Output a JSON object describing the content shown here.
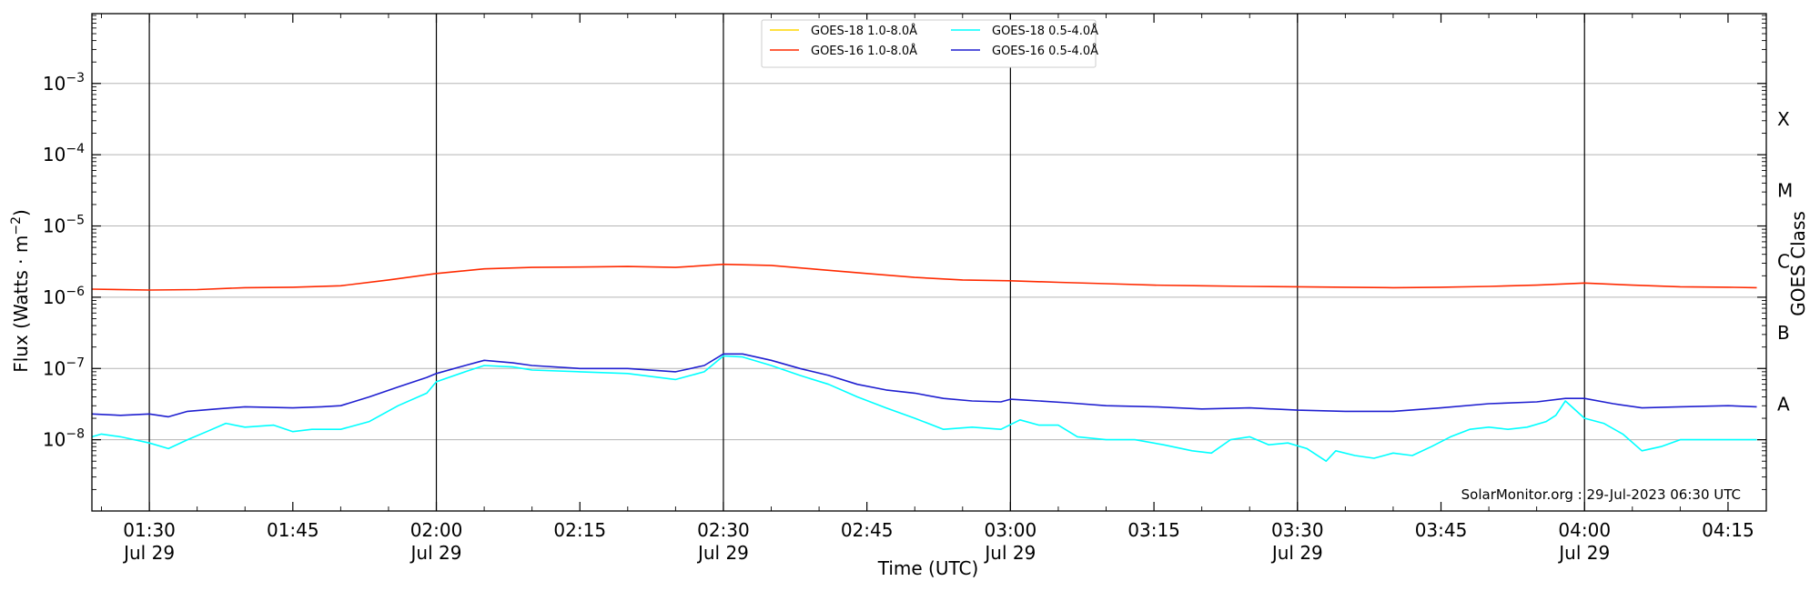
{
  "chart_data": {
    "type": "line",
    "yscale": "log",
    "ylabel_base": "Flux (Watts · m",
    "ylabel_sup": "−2",
    "ylabel_end": ")",
    "xlabel": "Time (UTC)",
    "right_label": "GOES Class",
    "credit": "SolarMonitor.org : 29-Jul-2023 06:30 UTC",
    "legend_position": "top-center",
    "grid": "horizontal at decades",
    "xlim": [
      "01:24",
      "04:19"
    ],
    "ylim_exponent": [
      -9,
      -2.02
    ],
    "x_ticks": [
      {
        "t": "01:30",
        "label": "01:30",
        "sub": "Jul 29",
        "major": true
      },
      {
        "t": "01:45",
        "label": "01:45",
        "sub": "",
        "major": false
      },
      {
        "t": "02:00",
        "label": "02:00",
        "sub": "Jul 29",
        "major": true
      },
      {
        "t": "02:15",
        "label": "02:15",
        "sub": "",
        "major": false
      },
      {
        "t": "02:30",
        "label": "02:30",
        "sub": "Jul 29",
        "major": true
      },
      {
        "t": "02:45",
        "label": "02:45",
        "sub": "",
        "major": false
      },
      {
        "t": "03:00",
        "label": "03:00",
        "sub": "Jul 29",
        "major": true
      },
      {
        "t": "03:15",
        "label": "03:15",
        "sub": "",
        "major": false
      },
      {
        "t": "03:30",
        "label": "03:30",
        "sub": "Jul 29",
        "major": true
      },
      {
        "t": "03:45",
        "label": "03:45",
        "sub": "",
        "major": false
      },
      {
        "t": "04:00",
        "label": "04:00",
        "sub": "Jul 29",
        "major": true
      },
      {
        "t": "04:15",
        "label": "04:15",
        "sub": "",
        "major": false
      }
    ],
    "y_ticks": [
      {
        "exp": -3,
        "label": "10",
        "sup": "−3"
      },
      {
        "exp": -4,
        "label": "10",
        "sup": "−4"
      },
      {
        "exp": -5,
        "label": "10",
        "sup": "−5"
      },
      {
        "exp": -6,
        "label": "10",
        "sup": "−6"
      },
      {
        "exp": -7,
        "label": "10",
        "sup": "−7"
      },
      {
        "exp": -8,
        "label": "10",
        "sup": "−8"
      }
    ],
    "goes_classes": [
      {
        "label": "X",
        "exp": -3.5
      },
      {
        "label": "M",
        "exp": -4.5
      },
      {
        "label": "C",
        "exp": -5.5
      },
      {
        "label": "B",
        "exp": -6.5
      },
      {
        "label": "A",
        "exp": -7.5
      }
    ],
    "series": [
      {
        "name": "GOES-18 1.0-8.0Å",
        "color": "#ffd700",
        "points": []
      },
      {
        "name": "GOES-16 1.0-8.0Å",
        "color": "#ff2a00",
        "points": [
          [
            "01:24",
            1.3e-06
          ],
          [
            "01:30",
            1.26e-06
          ],
          [
            "01:35",
            1.28e-06
          ],
          [
            "01:40",
            1.36e-06
          ],
          [
            "01:45",
            1.38e-06
          ],
          [
            "01:50",
            1.45e-06
          ],
          [
            "01:55",
            1.75e-06
          ],
          [
            "02:00",
            2.15e-06
          ],
          [
            "02:05",
            2.5e-06
          ],
          [
            "02:10",
            2.62e-06
          ],
          [
            "02:15",
            2.65e-06
          ],
          [
            "02:20",
            2.7e-06
          ],
          [
            "02:25",
            2.62e-06
          ],
          [
            "02:30",
            2.9e-06
          ],
          [
            "02:35",
            2.8e-06
          ],
          [
            "02:40",
            2.45e-06
          ],
          [
            "02:45",
            2.15e-06
          ],
          [
            "02:50",
            1.9e-06
          ],
          [
            "02:55",
            1.75e-06
          ],
          [
            "03:00",
            1.7e-06
          ],
          [
            "03:05",
            1.62e-06
          ],
          [
            "03:10",
            1.55e-06
          ],
          [
            "03:15",
            1.48e-06
          ],
          [
            "03:20",
            1.45e-06
          ],
          [
            "03:25",
            1.42e-06
          ],
          [
            "03:30",
            1.4e-06
          ],
          [
            "03:35",
            1.38e-06
          ],
          [
            "03:40",
            1.36e-06
          ],
          [
            "03:45",
            1.38e-06
          ],
          [
            "03:50",
            1.42e-06
          ],
          [
            "03:55",
            1.48e-06
          ],
          [
            "04:00",
            1.58e-06
          ],
          [
            "04:05",
            1.48e-06
          ],
          [
            "04:10",
            1.4e-06
          ],
          [
            "04:15",
            1.38e-06
          ],
          [
            "04:18",
            1.36e-06
          ]
        ]
      },
      {
        "name": "GOES-18 0.5-4.0Å",
        "color": "#00ffff",
        "points": [
          [
            "01:24",
            1.1e-08
          ],
          [
            "01:25",
            1.2e-08
          ],
          [
            "01:27",
            1.1e-08
          ],
          [
            "01:30",
            9e-09
          ],
          [
            "01:32",
            7.5e-09
          ],
          [
            "01:34",
            1e-08
          ],
          [
            "01:36",
            1.3e-08
          ],
          [
            "01:38",
            1.7e-08
          ],
          [
            "01:40",
            1.5e-08
          ],
          [
            "01:43",
            1.6e-08
          ],
          [
            "01:45",
            1.3e-08
          ],
          [
            "01:47",
            1.4e-08
          ],
          [
            "01:50",
            1.4e-08
          ],
          [
            "01:53",
            1.8e-08
          ],
          [
            "01:56",
            3e-08
          ],
          [
            "01:59",
            4.5e-08
          ],
          [
            "02:00",
            6.5e-08
          ],
          [
            "02:03",
            9e-08
          ],
          [
            "02:05",
            1.1e-07
          ],
          [
            "02:08",
            1.05e-07
          ],
          [
            "02:10",
            9.5e-08
          ],
          [
            "02:15",
            9e-08
          ],
          [
            "02:20",
            8.5e-08
          ],
          [
            "02:25",
            7e-08
          ],
          [
            "02:28",
            9e-08
          ],
          [
            "02:30",
            1.5e-07
          ],
          [
            "02:32",
            1.45e-07
          ],
          [
            "02:35",
            1.1e-07
          ],
          [
            "02:38",
            8e-08
          ],
          [
            "02:41",
            6e-08
          ],
          [
            "02:44",
            4e-08
          ],
          [
            "02:47",
            2.8e-08
          ],
          [
            "02:50",
            2e-08
          ],
          [
            "02:53",
            1.4e-08
          ],
          [
            "02:56",
            1.5e-08
          ],
          [
            "02:59",
            1.4e-08
          ],
          [
            "03:01",
            1.9e-08
          ],
          [
            "03:03",
            1.6e-08
          ],
          [
            "03:05",
            1.6e-08
          ],
          [
            "03:07",
            1.1e-08
          ],
          [
            "03:10",
            1e-08
          ],
          [
            "03:13",
            1e-08
          ],
          [
            "03:16",
            8.5e-09
          ],
          [
            "03:19",
            7e-09
          ],
          [
            "03:21",
            6.5e-09
          ],
          [
            "03:23",
            1e-08
          ],
          [
            "03:25",
            1.1e-08
          ],
          [
            "03:27",
            8.5e-09
          ],
          [
            "03:29",
            9e-09
          ],
          [
            "03:31",
            7.5e-09
          ],
          [
            "03:33",
            5e-09
          ],
          [
            "03:34",
            7e-09
          ],
          [
            "03:36",
            6e-09
          ],
          [
            "03:38",
            5.5e-09
          ],
          [
            "03:40",
            6.5e-09
          ],
          [
            "03:42",
            6e-09
          ],
          [
            "03:44",
            8e-09
          ],
          [
            "03:46",
            1.1e-08
          ],
          [
            "03:48",
            1.4e-08
          ],
          [
            "03:50",
            1.5e-08
          ],
          [
            "03:52",
            1.4e-08
          ],
          [
            "03:54",
            1.5e-08
          ],
          [
            "03:56",
            1.8e-08
          ],
          [
            "03:57",
            2.2e-08
          ],
          [
            "03:58",
            3.5e-08
          ],
          [
            "04:00",
            2e-08
          ],
          [
            "04:02",
            1.7e-08
          ],
          [
            "04:04",
            1.2e-08
          ],
          [
            "04:06",
            7e-09
          ],
          [
            "04:08",
            8e-09
          ],
          [
            "04:10",
            1e-08
          ],
          [
            "04:12",
            1e-08
          ],
          [
            "04:14",
            1e-08
          ],
          [
            "04:16",
            1e-08
          ],
          [
            "04:18",
            1e-08
          ]
        ]
      },
      {
        "name": "GOES-16 0.5-4.0Å",
        "color": "#1f1fd0",
        "points": [
          [
            "01:24",
            2.3e-08
          ],
          [
            "01:27",
            2.2e-08
          ],
          [
            "01:30",
            2.3e-08
          ],
          [
            "01:32",
            2.1e-08
          ],
          [
            "01:34",
            2.5e-08
          ],
          [
            "01:37",
            2.7e-08
          ],
          [
            "01:40",
            2.9e-08
          ],
          [
            "01:45",
            2.8e-08
          ],
          [
            "01:48",
            2.9e-08
          ],
          [
            "01:50",
            3e-08
          ],
          [
            "01:53",
            4e-08
          ],
          [
            "01:56",
            5.5e-08
          ],
          [
            "01:59",
            7.5e-08
          ],
          [
            "02:00",
            8.5e-08
          ],
          [
            "02:03",
            1.1e-07
          ],
          [
            "02:05",
            1.3e-07
          ],
          [
            "02:08",
            1.2e-07
          ],
          [
            "02:10",
            1.1e-07
          ],
          [
            "02:15",
            1e-07
          ],
          [
            "02:20",
            1e-07
          ],
          [
            "02:25",
            9e-08
          ],
          [
            "02:28",
            1.1e-07
          ],
          [
            "02:30",
            1.6e-07
          ],
          [
            "02:32",
            1.6e-07
          ],
          [
            "02:35",
            1.3e-07
          ],
          [
            "02:38",
            1e-07
          ],
          [
            "02:41",
            8e-08
          ],
          [
            "02:44",
            6e-08
          ],
          [
            "02:47",
            5e-08
          ],
          [
            "02:50",
            4.5e-08
          ],
          [
            "02:53",
            3.8e-08
          ],
          [
            "02:56",
            3.5e-08
          ],
          [
            "02:59",
            3.4e-08
          ],
          [
            "03:00",
            3.7e-08
          ],
          [
            "03:03",
            3.5e-08
          ],
          [
            "03:06",
            3.3e-08
          ],
          [
            "03:10",
            3e-08
          ],
          [
            "03:15",
            2.9e-08
          ],
          [
            "03:20",
            2.7e-08
          ],
          [
            "03:25",
            2.8e-08
          ],
          [
            "03:30",
            2.6e-08
          ],
          [
            "03:35",
            2.5e-08
          ],
          [
            "03:40",
            2.5e-08
          ],
          [
            "03:45",
            2.8e-08
          ],
          [
            "03:50",
            3.2e-08
          ],
          [
            "03:55",
            3.4e-08
          ],
          [
            "03:58",
            3.8e-08
          ],
          [
            "04:00",
            3.8e-08
          ],
          [
            "04:03",
            3.2e-08
          ],
          [
            "04:06",
            2.8e-08
          ],
          [
            "04:10",
            2.9e-08
          ],
          [
            "04:15",
            3e-08
          ],
          [
            "04:18",
            2.9e-08
          ]
        ]
      }
    ]
  }
}
